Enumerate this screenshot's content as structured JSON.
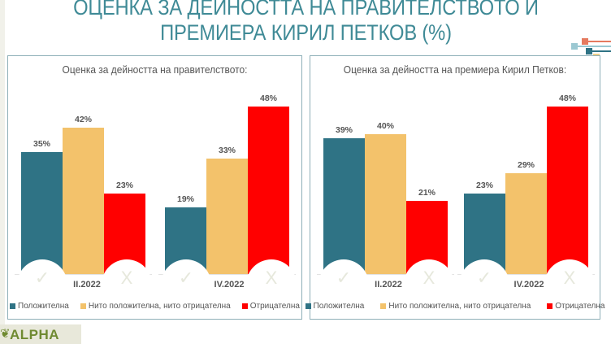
{
  "header": {
    "title_line1": "ОЦЕНКА ЗА ДЕЙНОСТТА НА ПРАВИТЕЛСТВОТО И",
    "title_line2": "ПРЕМИЕРА КИРИЛ ПЕТКОВ (%)"
  },
  "colors": {
    "positive": "#2f7385",
    "neutral": "#f3c26b",
    "negative": "#ff0000",
    "title": "#3f8a96",
    "panel_border": "#8fb0b8"
  },
  "legend": {
    "positive": "Положителна",
    "neutral": "Нито положителна, нито отрицателна",
    "negative": "Отрицателна"
  },
  "icons": {
    "check": "✓",
    "cross": "X"
  },
  "logo": {
    "text": "ALPHA",
    "icon": "leaf-icon"
  },
  "panels": [
    {
      "title": "Оценка за дейността на правителството:",
      "groups": [
        {
          "category": "II.2022",
          "values": [
            "35%",
            "42%",
            "23%"
          ]
        },
        {
          "category": "IV.2022",
          "values": [
            "19%",
            "33%",
            "48%"
          ]
        }
      ]
    },
    {
      "title": "Оценка за дейността на премиера Кирил Петков:",
      "groups": [
        {
          "category": "II.2022",
          "values": [
            "39%",
            "40%",
            "21%"
          ]
        },
        {
          "category": "IV.2022",
          "values": [
            "23%",
            "29%",
            "48%"
          ]
        }
      ]
    }
  ],
  "chart_data": [
    {
      "type": "bar",
      "title": "Оценка за дейността на правителството:",
      "categories": [
        "II.2022",
        "IV.2022"
      ],
      "series": [
        {
          "name": "Положителна",
          "values": [
            35,
            19
          ]
        },
        {
          "name": "Нито положителна, нито отрицателна",
          "values": [
            42,
            33
          ]
        },
        {
          "name": "Отрицателна",
          "values": [
            23,
            48
          ]
        }
      ],
      "xlabel": "",
      "ylabel": "%",
      "ylim": [
        0,
        50
      ],
      "grid": false,
      "legend_position": "bottom"
    },
    {
      "type": "bar",
      "title": "Оценка за дейността на премиера Кирил Петков:",
      "categories": [
        "II.2022",
        "IV.2022"
      ],
      "series": [
        {
          "name": "Положителна",
          "values": [
            39,
            23
          ]
        },
        {
          "name": "Нито положителна, нито отрицателна",
          "values": [
            40,
            29
          ]
        },
        {
          "name": "Отрицателна",
          "values": [
            21,
            48
          ]
        }
      ],
      "xlabel": "",
      "ylabel": "%",
      "ylim": [
        0,
        50
      ],
      "grid": false,
      "legend_position": "bottom"
    }
  ]
}
